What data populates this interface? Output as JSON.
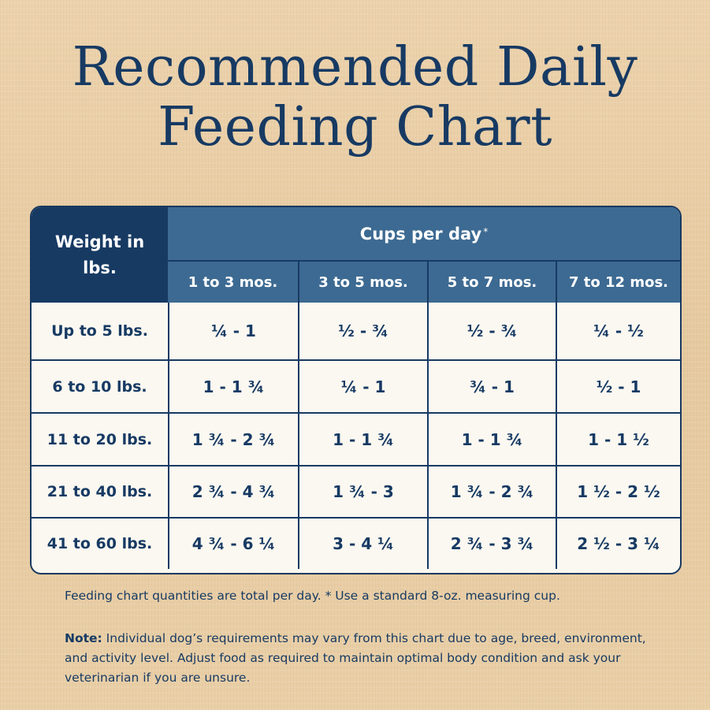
{
  "title": {
    "line1": "Recommended Daily",
    "line2": "Feeding Chart"
  },
  "table": {
    "weight_header": "Weight in lbs.",
    "cups_header": "Cups per day",
    "cups_asterisk": "*",
    "age_columns": [
      "1 to 3 mos.",
      "3 to 5 mos.",
      "5 to 7 mos.",
      "7 to 12 mos."
    ],
    "rows": [
      {
        "weight": "Up to 5 lbs.",
        "values": [
          "¼ - 1",
          "½ - ¾",
          "½ - ¾",
          "¼ - ½"
        ]
      },
      {
        "weight": "6 to 10 lbs.",
        "values": [
          "1 - 1 ¾",
          "¼ - 1",
          "¾ - 1",
          "½ - 1"
        ]
      },
      {
        "weight": "11 to 20 lbs.",
        "values": [
          "1 ¾ - 2 ¾",
          "1 - 1 ¾",
          "1 - 1 ¾",
          "1 - 1 ½"
        ]
      },
      {
        "weight": "21 to 40 lbs.",
        "values": [
          "2 ¾ - 4 ¾",
          "1 ¾ - 3",
          "1 ¾ - 2 ¾",
          "1 ½ - 2 ½"
        ]
      },
      {
        "weight": "41 to 60 lbs.",
        "values": [
          "4 ¾ - 6 ¼",
          "3 - 4 ¼",
          "2 ¾ - 3 ¾",
          "2 ½ - 3 ¼"
        ]
      }
    ]
  },
  "footnote": "Feeding chart quantities are total per day. * Use a standard 8-oz. measuring cup.",
  "note": {
    "label": "Note:",
    "text": " Individual dog’s requirements may vary from this chart due to age, breed, environment, and activity level. Adjust food as required to maintain optimal body condition and ask your veterinarian if you are unsure."
  },
  "colors": {
    "navy": "#173a63",
    "header_blue": "#3d6a92",
    "cell_bg": "#fbf8f1",
    "background": "#e9cda4"
  }
}
